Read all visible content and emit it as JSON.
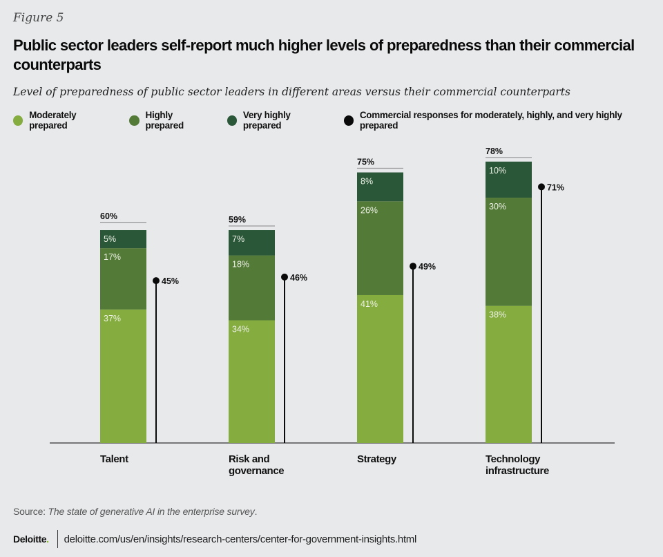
{
  "figure_label": "Figure 5",
  "title": "Public sector leaders self-report much higher levels of preparedness than their commercial counterparts",
  "subtitle": "Level of preparedness of public sector leaders in different areas versus their commercial counterparts",
  "colors": {
    "moderately": "#84ac3e",
    "highly": "#547a38",
    "very_highly": "#2b5739",
    "commercial": "#0a0a0a"
  },
  "legend": [
    {
      "label": "Moderately prepared",
      "color": "#84ac3e"
    },
    {
      "label": "Highly prepared",
      "color": "#547a38"
    },
    {
      "label": "Very highly prepared",
      "color": "#2b5739"
    },
    {
      "label": "Commercial responses for moderately, highly, and very highly prepared",
      "color": "#0a0a0a"
    }
  ],
  "chart_data": {
    "type": "bar",
    "stacked": true,
    "title": "Public sector leaders self-report much higher levels of preparedness than their commercial counterparts",
    "subtitle": "Level of preparedness of public sector leaders in different areas versus their commercial counterparts",
    "categories": [
      "Talent",
      "Risk and governance",
      "Strategy",
      "Technology infrastructure"
    ],
    "category_lines": [
      [
        "Talent"
      ],
      [
        "Risk and",
        "governance"
      ],
      [
        "Strategy"
      ],
      [
        "Technology",
        "infrastructure"
      ]
    ],
    "series": [
      {
        "name": "Moderately prepared",
        "values": [
          37,
          34,
          41,
          38
        ],
        "labels": [
          "37%",
          "34%",
          "41%",
          "38%"
        ]
      },
      {
        "name": "Highly prepared",
        "values": [
          17,
          18,
          26,
          30
        ],
        "labels": [
          "17%",
          "18%",
          "26%",
          "30%"
        ]
      },
      {
        "name": "Very highly prepared",
        "values": [
          5,
          7,
          8,
          10
        ],
        "labels": [
          "5%",
          "7%",
          "8%",
          "10%"
        ]
      }
    ],
    "totals": [
      60,
      59,
      75,
      78
    ],
    "total_labels": [
      "60%",
      "59%",
      "75%",
      "78%"
    ],
    "commercial": {
      "name": "Commercial responses for moderately, highly, and very highly prepared",
      "values": [
        45,
        46,
        49,
        71
      ],
      "labels": [
        "45%",
        "46%",
        "49%",
        "71%"
      ]
    },
    "xlabel": "",
    "ylabel": "",
    "ylim": [
      0,
      100
    ],
    "grid": false,
    "legend_position": "top-left"
  },
  "source_prefix": "Source: ",
  "source_title": "The state of generative AI in the enterprise survey",
  "source_suffix": ".",
  "footer": {
    "brand": "Deloitte",
    "brand_dot": ".",
    "url": "deloitte.com/us/en/insights/research-centers/center-for-government-insights.html"
  }
}
